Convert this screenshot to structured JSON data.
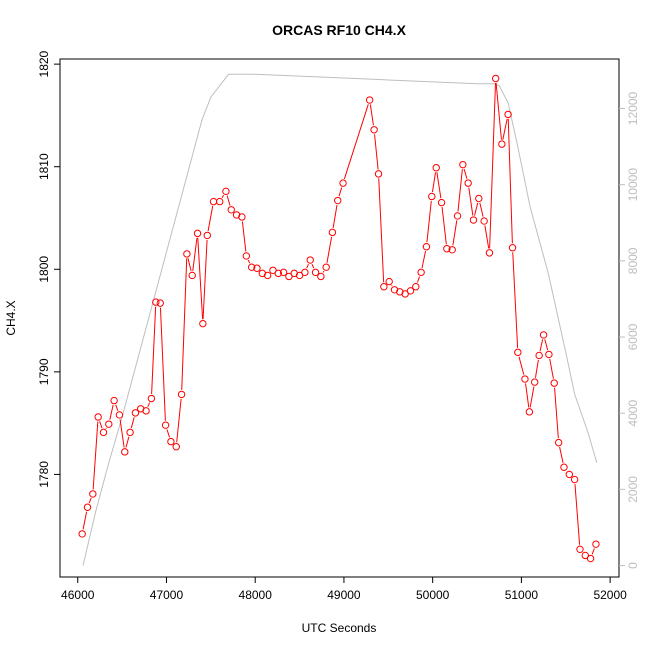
{
  "chart_data": {
    "type": "line",
    "title": "ORCAS RF10 CH4.X",
    "xlabel": "UTC Seconds",
    "ylabel": "CH4.X",
    "xlim": [
      45800,
      52100
    ],
    "ylim": [
      1770,
      1820.5
    ],
    "y2lim": [
      -300,
      13300
    ],
    "x_ticks": [
      "46000",
      "47000",
      "48000",
      "49000",
      "50000",
      "51000",
      "52000"
    ],
    "y_ticks": [
      "1780",
      "1790",
      "1800",
      "1810",
      "1820"
    ],
    "y2_ticks": [
      "0",
      "2000",
      "4000",
      "6000",
      "8000",
      "10000",
      "12000"
    ],
    "colors": {
      "series": "#ff0000",
      "altitude": "#bebebe",
      "right_axis": "#bdbdbd"
    },
    "series": [
      {
        "values_x": [
          46050,
          46110,
          46170,
          46230,
          46290,
          46350,
          46410,
          46470,
          46530,
          46590,
          46650,
          46710,
          46770,
          46830,
          46880,
          46930,
          46990,
          47050,
          47110,
          47170,
          47230,
          47290,
          47350,
          47410,
          47460,
          47530,
          47600,
          47670,
          47730,
          47790,
          47850,
          47900,
          47960,
          48020,
          48080,
          48140,
          48200,
          48260,
          48320,
          48380,
          48440,
          48500,
          48560,
          48620,
          48680,
          48740,
          48800,
          48870,
          48930,
          48990,
          49290,
          49340,
          49390,
          49450,
          49510,
          49570,
          49630,
          49690,
          49750,
          49810,
          49870,
          49930,
          49990,
          50040,
          50100,
          50160,
          50220,
          50280,
          50340,
          50400,
          50460,
          50520,
          50580,
          50640,
          50710,
          50780,
          50850,
          50900,
          50960,
          51040,
          51090,
          51150,
          51200,
          51250,
          51310,
          51370,
          51420,
          51480,
          51540,
          51600,
          51660,
          51720,
          51780,
          51840
        ],
        "values": [
          1774.2,
          1776.8,
          1778.1,
          1785.6,
          1784.1,
          1784.9,
          1787.2,
          1785.8,
          1782.2,
          1784.1,
          1786.0,
          1786.4,
          1786.2,
          1787.4,
          1796.8,
          1796.7,
          1784.8,
          1783.2,
          1782.7,
          1787.8,
          1801.5,
          1799.4,
          1803.5,
          1794.7,
          1803.3,
          1806.6,
          1806.6,
          1807.6,
          1805.8,
          1805.3,
          1805.1,
          1801.3,
          1800.2,
          1800.1,
          1799.6,
          1799.4,
          1799.9,
          1799.6,
          1799.7,
          1799.3,
          1799.6,
          1799.4,
          1799.7,
          1800.9,
          1799.7,
          1799.3,
          1800.2,
          1803.6,
          1806.7,
          1808.4,
          1816.5,
          1813.6,
          1809.3,
          1798.3,
          1798.8,
          1798.0,
          1797.8,
          1797.6,
          1797.9,
          1798.3,
          1799.7,
          1802.2,
          1807.1,
          1809.9,
          1806.5,
          1802.0,
          1801.9,
          1805.2,
          1810.2,
          1808.4,
          1804.8,
          1806.9,
          1804.7,
          1801.6,
          1818.6,
          1812.2,
          1815.1,
          1802.1,
          1791.9,
          1789.3,
          1786.1,
          1789.0,
          1791.6,
          1793.6,
          1791.7,
          1788.9,
          1783.1,
          1780.7,
          1780.0,
          1779.5,
          1772.7,
          1772.1,
          1771.8,
          1773.2
        ]
      },
      {
        "axis": "right",
        "values_x": [
          46060,
          46200,
          46350,
          46500,
          46650,
          46800,
          46950,
          47100,
          47250,
          47400,
          47500,
          47600,
          47700,
          48000,
          48500,
          49000,
          49500,
          50000,
          50500,
          50700,
          50750,
          50850,
          50950,
          51100,
          51300,
          51500,
          51600,
          51750,
          51850
        ],
        "values": [
          0,
          1400,
          2700,
          3900,
          5200,
          6500,
          7800,
          9100,
          10400,
          11700,
          12300,
          12600,
          12900,
          12900,
          12850,
          12800,
          12750,
          12700,
          12650,
          12650,
          12600,
          12150,
          11100,
          9400,
          7700,
          5600,
          4500,
          3500,
          2700
        ]
      }
    ]
  }
}
